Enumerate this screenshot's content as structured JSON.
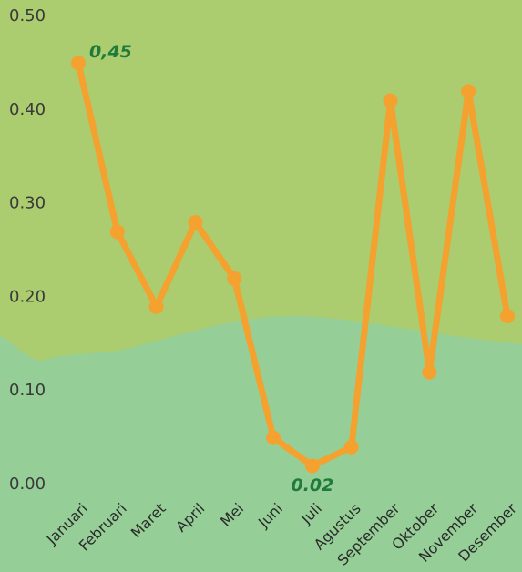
{
  "chart_data": {
    "type": "line",
    "categories": [
      "Januari",
      "Februari",
      "Maret",
      "April",
      "Mei",
      "Juni",
      "Juli",
      "Agustus",
      "September",
      "Oktober",
      "November",
      "Desember"
    ],
    "values": [
      0.45,
      0.27,
      0.19,
      0.28,
      0.22,
      0.05,
      0.02,
      0.04,
      0.41,
      0.12,
      0.42,
      0.18
    ],
    "value_labels": [
      "0,45",
      null,
      null,
      null,
      null,
      null,
      "0.02",
      null,
      null,
      null,
      null,
      null
    ],
    "color": "#f5a12f",
    "ylim": [
      0,
      0.5
    ],
    "yticks": [
      {
        "value": 0,
        "label": "0.00"
      },
      {
        "value": 0.1,
        "label": "0.10"
      },
      {
        "value": 0.2,
        "label": "0.20"
      },
      {
        "value": 0.3,
        "label": "0.30"
      },
      {
        "value": 0.4,
        "label": "0.40"
      },
      {
        "value": 0.5,
        "label": "0.50"
      }
    ]
  }
}
